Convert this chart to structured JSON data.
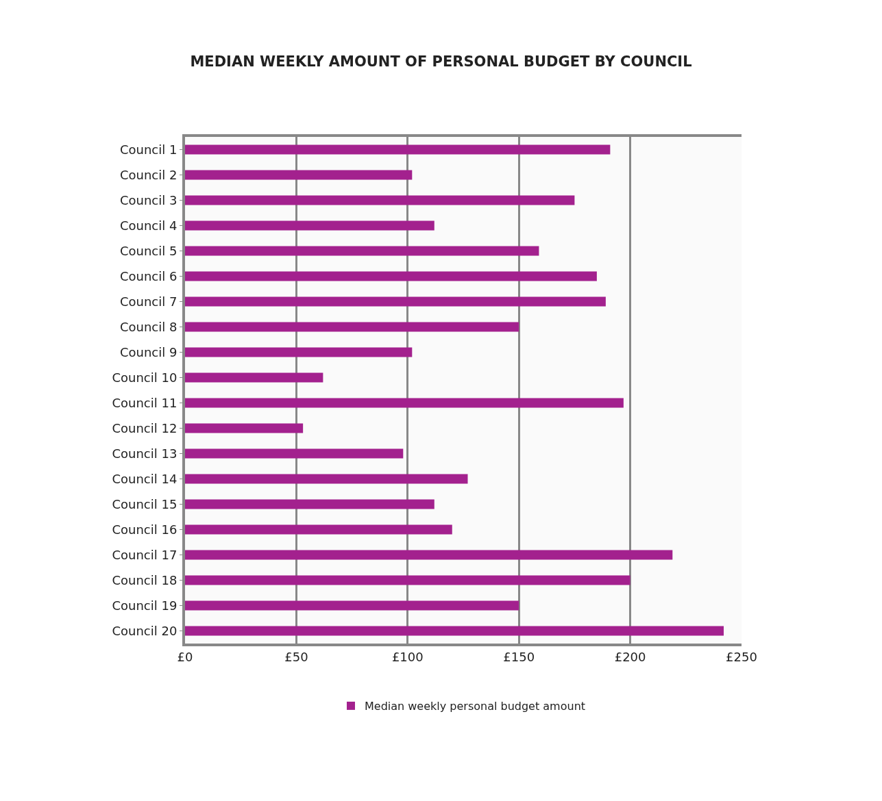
{
  "chart_data": {
    "type": "bar",
    "orientation": "horizontal",
    "title": "MEDIAN WEEKLY AMOUNT OF PERSONAL BUDGET BY COUNCIL",
    "categories": [
      "Council 1",
      "Council 2",
      "Council 3",
      "Council 4",
      "Council 5",
      "Council 6",
      "Council 7",
      "Council 8",
      "Council 9",
      "Council 10",
      "Council 11",
      "Council 12",
      "Council 13",
      "Council 14",
      "Council 15",
      "Council 16",
      "Council 17",
      "Council 18",
      "Council 19",
      "Council 20"
    ],
    "series": [
      {
        "name": "Median weekly personal budget amount",
        "color": "#a3218e",
        "values": [
          191,
          102,
          175,
          112,
          159,
          185,
          189,
          150,
          102,
          62,
          197,
          53,
          98,
          127,
          112,
          120,
          219,
          200,
          150,
          242
        ]
      }
    ],
    "xlim": [
      0,
      250
    ],
    "xticks": [
      {
        "value": 0,
        "label": "£0"
      },
      {
        "value": 50,
        "label": "£50"
      },
      {
        "value": 100,
        "label": "£100"
      },
      {
        "value": 150,
        "label": "£150"
      },
      {
        "value": 200,
        "label": "£200"
      },
      {
        "value": 250,
        "label": "£250"
      }
    ],
    "grid": "x",
    "legend": "bottom"
  }
}
